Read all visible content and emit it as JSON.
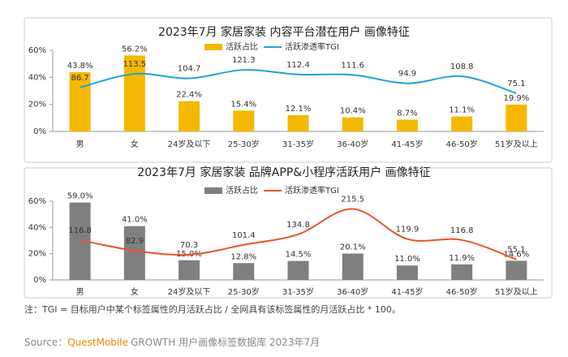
{
  "chart_data": [
    {
      "type": "bar_line",
      "title": "2023年7月 家居家装 内容平台潜在用户 画像特征",
      "categories": [
        "男",
        "女",
        "24岁及以下",
        "25-30岁",
        "31-35岁",
        "36-40岁",
        "41-45岁",
        "46-50岁",
        "51岁及以上"
      ],
      "series": [
        {
          "name": "活跃占比",
          "color": "#f5b800",
          "values": [
            43.8,
            56.2,
            22.4,
            15.4,
            12.1,
            10.4,
            8.7,
            11.1,
            19.9
          ],
          "value_labels": [
            "43.8%",
            "56.2%",
            "22.4%",
            "15.4%",
            "12.1%",
            "10.4%",
            "8.7%",
            "11.1%",
            "19.9%"
          ]
        },
        {
          "name": "活跃渗透率TGI",
          "color": "#1ca3d8",
          "axis": "y2",
          "values": [
            86.7,
            113.5,
            104.7,
            121.3,
            112.4,
            111.6,
            94.9,
            108.8,
            75.1
          ]
        }
      ],
      "ylim": [
        0,
        60
      ],
      "yticks": [
        {
          "value": 0,
          "label": "0%"
        },
        {
          "value": 20,
          "label": "20%"
        },
        {
          "value": 40,
          "label": "40%"
        },
        {
          "value": 60,
          "label": "60%"
        }
      ],
      "y2lim": [
        0,
        160
      ]
    },
    {
      "type": "bar_line",
      "title": "2023年7月 家居家装 品牌APP&小程序活跃用户 画像特征",
      "categories": [
        "男",
        "女",
        "24岁及以下",
        "25-30岁",
        "31-35岁",
        "36-40岁",
        "41-45岁",
        "46-50岁",
        "51岁及以上"
      ],
      "series": [
        {
          "name": "活跃占比",
          "color": "#7f7f7f",
          "values": [
            59.0,
            41.0,
            15.0,
            12.8,
            14.5,
            20.1,
            11.0,
            11.9,
            14.6
          ],
          "value_labels": [
            "59.0%",
            "41.0%",
            "15.0%",
            "12.8%",
            "14.5%",
            "20.1%",
            "11.0%",
            "11.9%",
            "14.6%"
          ]
        },
        {
          "name": "活跃渗透率TGI",
          "color": "#e8552b",
          "axis": "y2",
          "values": [
            116.8,
            82.9,
            70.3,
            101.4,
            134.8,
            215.5,
            119.9,
            116.8,
            55.1
          ]
        }
      ],
      "ylim": [
        0,
        60
      ],
      "yticks": [
        {
          "value": 0,
          "label": "0%"
        },
        {
          "value": 20,
          "label": "20%"
        },
        {
          "value": 40,
          "label": "40%"
        },
        {
          "value": 60,
          "label": "60%"
        }
      ],
      "y2lim": [
        -10,
        240
      ]
    }
  ],
  "footer": {
    "note": "注：TGI = 目标用户中某个标签属性的月活跃占比 / 全网具有该标签属性的月活跃占比 * 100。",
    "source_label": "Source：",
    "source_brand": "QuestMobile",
    "source_text": "GROWTH 用户画像标签数据库 2023年7月"
  }
}
